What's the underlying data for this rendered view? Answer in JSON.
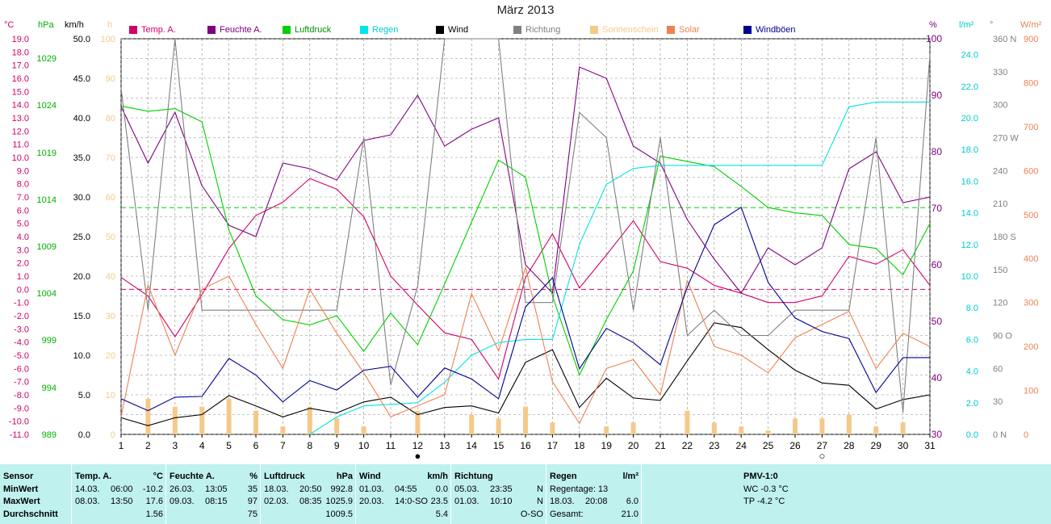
{
  "title": "März 2013",
  "units": {
    "temp": "°C",
    "hpa": "hPa",
    "kmh": "km/h",
    "h": "h",
    "pct": "%",
    "rain": "l/m²",
    "deg": "°",
    "solar": "W/m²"
  },
  "legend": [
    {
      "label": "Temp. A.",
      "color": "#d4006a"
    },
    {
      "label": "Feuchte A.",
      "color": "#800080"
    },
    {
      "label": "Luftdruck",
      "color": "#00d000"
    },
    {
      "label": "Regen",
      "color": "#00e6e6"
    },
    {
      "label": "Wind",
      "color": "#000000"
    },
    {
      "label": "Richtung",
      "color": "#808080"
    },
    {
      "label": "Sonnenschein",
      "color": "#f5c98a"
    },
    {
      "label": "Solar",
      "color": "#f08050"
    },
    {
      "label": "Windböen",
      "color": "#000090"
    }
  ],
  "chart_data": {
    "type": "line",
    "title": "März 2013",
    "x": [
      1,
      2,
      3,
      4,
      5,
      6,
      7,
      8,
      9,
      10,
      11,
      12,
      13,
      14,
      15,
      16,
      17,
      18,
      19,
      20,
      21,
      22,
      23,
      24,
      25,
      26,
      27,
      28,
      29,
      30,
      31
    ],
    "axes": {
      "temp": {
        "unit": "°C",
        "ylim": [
          -11,
          19
        ],
        "ticks": [
          "19.0",
          "18.0",
          "17.0",
          "16.0",
          "15.0",
          "14.0",
          "13.0",
          "12.0",
          "11.0",
          "10.0",
          "9.0",
          "8.0",
          "7.0",
          "6.0",
          "5.0",
          "4.0",
          "3.0",
          "2.0",
          "1.0",
          "0.0",
          "-1.0",
          "-2.0",
          "-3.0",
          "-4.0",
          "-5.0",
          "-6.0",
          "-7.0",
          "-8.0",
          "-9.0",
          "-10.0",
          "-11.0"
        ]
      },
      "pressure": {
        "unit": "hPa",
        "ticks": [
          "1029",
          "1024",
          "1019",
          "1014",
          "1009",
          "1004",
          "999",
          "994",
          "989"
        ]
      },
      "wind": {
        "unit": "km/h",
        "ylim": [
          0,
          50
        ],
        "ticks": [
          "50.0",
          "45.0",
          "40.0",
          "35.0",
          "30.0",
          "25.0",
          "20.0",
          "15.0",
          "10.0",
          "5.0",
          "0.0"
        ]
      },
      "sunshine": {
        "unit": "h",
        "ylim": [
          0,
          100
        ],
        "ticks": [
          "100",
          "90",
          "80",
          "70",
          "60",
          "50",
          "40",
          "30",
          "20",
          "10",
          "0"
        ]
      },
      "humidity": {
        "unit": "%",
        "ylim": [
          30,
          100
        ],
        "ticks": [
          "100",
          "90",
          "80",
          "70",
          "60",
          "50",
          "40",
          "30"
        ]
      },
      "rain": {
        "unit": "l/m²",
        "ylim": [
          0,
          25
        ],
        "ticks": [
          "24.0",
          "22.0",
          "20.0",
          "18.0",
          "16.0",
          "14.0",
          "12.0",
          "10.0",
          "8.0",
          "6.0",
          "4.0",
          "2.0",
          "0.0"
        ]
      },
      "direction": {
        "unit": "°",
        "ylim": [
          0,
          360
        ],
        "ticks": [
          "360 N",
          "330",
          "300",
          "270 W",
          "240",
          "210",
          "180 S",
          "150",
          "120",
          "90 O",
          "60",
          "30",
          "0 N"
        ]
      },
      "solar": {
        "unit": "W/m²",
        "ylim": [
          0,
          900
        ],
        "ticks": [
          "900",
          "800",
          "700",
          "600",
          "500",
          "400",
          "300",
          "200",
          "100",
          "0"
        ]
      }
    },
    "series": [
      {
        "name": "Temp. A.",
        "axis": "temp",
        "color": "#d4006a",
        "values": [
          0.9,
          -0.5,
          -3.6,
          -0.4,
          3.1,
          5.6,
          6.6,
          8.4,
          7.6,
          5.5,
          1.0,
          -1.2,
          -3.3,
          -3.8,
          -6.8,
          0.9,
          4.2,
          0.1,
          2.6,
          5.2,
          2.1,
          1.6,
          0.3,
          -0.3,
          -1.0,
          -1.0,
          -0.5,
          2.5,
          1.9,
          3.0,
          0.3
        ]
      },
      {
        "name": "Feuchte A.",
        "axis": "humidity",
        "color": "#800080",
        "values": [
          88,
          78,
          87,
          74,
          67,
          65,
          78,
          77,
          75,
          82,
          83,
          90,
          81,
          84,
          86,
          60,
          55,
          95,
          93,
          81,
          78,
          68,
          61,
          55,
          63,
          60,
          63,
          77,
          80,
          71,
          72
        ]
      },
      {
        "name": "Luftdruck",
        "axis": "temp",
        "color": "#00d000",
        "values": [
          13.9,
          13.5,
          13.7,
          12.7,
          4.5,
          -0.5,
          -2.3,
          -2.7,
          -2.0,
          -4.7,
          -1.8,
          -4.2,
          0.4,
          5.1,
          9.8,
          8.5,
          -0.5,
          -6.5,
          -2.3,
          1.4,
          10.1,
          9.7,
          9.3,
          7.8,
          6.2,
          5.8,
          5.6,
          3.4,
          3.1,
          1.1,
          5.0
        ]
      },
      {
        "name": "Regen",
        "axis": "rain",
        "color": "#00e6e6",
        "values": [
          null,
          null,
          null,
          null,
          null,
          null,
          null,
          0.0,
          1.1,
          1.8,
          1.9,
          2.0,
          3.3,
          5.0,
          5.8,
          6.0,
          6.0,
          12.0,
          15.8,
          16.8,
          17.0,
          17.0,
          17.0,
          17.0,
          17.0,
          17.0,
          17.0,
          20.7,
          21.0,
          21.0,
          21.0
        ]
      },
      {
        "name": "Wind",
        "axis": "wind",
        "color": "#000000",
        "values": [
          2.1,
          1.1,
          2.1,
          2.5,
          4.9,
          3.6,
          2.2,
          3.3,
          2.7,
          4.1,
          4.7,
          2.5,
          3.4,
          3.6,
          2.7,
          9.1,
          10.7,
          3.4,
          7.1,
          4.6,
          4.3,
          9.3,
          14.1,
          13.5,
          10.7,
          8.1,
          6.5,
          6.2,
          3.2,
          4.4,
          5.0
        ]
      },
      {
        "name": "Richtung",
        "axis": "direction",
        "color": "#808080",
        "values": [
          315,
          113,
          360,
          113,
          113,
          113,
          113,
          113,
          113,
          270,
          45,
          135,
          360,
          360,
          360,
          120,
          120,
          293,
          270,
          113,
          270,
          90,
          113,
          90,
          90,
          113,
          113,
          113,
          270,
          20,
          345
        ]
      },
      {
        "name": "Sonnenschein",
        "axis": "sunshine",
        "color": "#f5c98a",
        "values": [
          0,
          9,
          7,
          7,
          9,
          6,
          2,
          7,
          4,
          2,
          0,
          6,
          0,
          5,
          4,
          7,
          3,
          0,
          2,
          3,
          0,
          6,
          3,
          2,
          1,
          4,
          4,
          5,
          2,
          3,
          0
        ]
      },
      {
        "name": "Solar",
        "axis": "solar",
        "color": "#f08050",
        "values": [
          40,
          340,
          180,
          330,
          360,
          250,
          150,
          330,
          230,
          140,
          40,
          65,
          90,
          320,
          190,
          380,
          120,
          25,
          150,
          170,
          90,
          350,
          200,
          180,
          140,
          220,
          250,
          280,
          150,
          230,
          200
        ]
      },
      {
        "name": "Windböen",
        "axis": "wind",
        "color": "#000090",
        "values": [
          4.5,
          3.0,
          4.7,
          4.8,
          9.6,
          7.5,
          4.1,
          6.8,
          5.6,
          8.1,
          8.6,
          4.7,
          8.4,
          7.0,
          4.5,
          16.1,
          19.8,
          8.3,
          13.4,
          11.6,
          8.8,
          18.6,
          26.5,
          28.7,
          19.2,
          14.7,
          13.0,
          12.1,
          5.3,
          9.7,
          9.7
        ]
      }
    ],
    "reference_lines": [
      {
        "axis": "temp",
        "value": 0.0,
        "color": "#d4006a"
      },
      {
        "axis": "temp",
        "value": 6.2,
        "color": "#00d000"
      }
    ],
    "moon_markers": [
      {
        "x": 12,
        "symbol": "●"
      },
      {
        "x": 27,
        "symbol": "○"
      }
    ],
    "grid": true
  },
  "table": {
    "sensor": {
      "header": "Sensor",
      "rows": [
        "MinWert",
        "MaxWert",
        "Durchschnitt"
      ]
    },
    "temp": {
      "header": "Temp. A.",
      "unit": "°C",
      "rows": [
        [
          "14.03.",
          "06:00",
          "-10.2"
        ],
        [
          "08.03.",
          "13:50",
          "17.6"
        ],
        [
          "",
          "",
          "1.56"
        ]
      ]
    },
    "feuchte": {
      "header": "Feuchte A.",
      "unit": "%",
      "rows": [
        [
          "26.03.",
          "13:05",
          "35"
        ],
        [
          "09.03.",
          "08:15",
          "97"
        ],
        [
          "",
          "",
          "75"
        ]
      ]
    },
    "luftdruck": {
      "header": "Luftdruck",
      "unit": "hPa",
      "rows": [
        [
          "18.03.",
          "20:50",
          "992.8"
        ],
        [
          "02.03.",
          "08:35",
          "1025.9"
        ],
        [
          "",
          "",
          "1009.5"
        ]
      ]
    },
    "wind": {
      "header": "Wind",
      "unit": "km/h",
      "rows": [
        [
          "01.03.",
          "04:55",
          "0.0"
        ],
        [
          "20.03.",
          "14:0-SO",
          "23.5"
        ],
        [
          "",
          "",
          "5.4"
        ]
      ]
    },
    "richtung": {
      "header": "Richtung",
      "rows": [
        [
          "05.03.",
          "23:35",
          "N"
        ],
        [
          "01.03.",
          "10:10",
          "N"
        ],
        [
          "",
          "",
          "O-SO"
        ]
      ]
    },
    "regen": {
      "header": "Regen",
      "unit": "l/m²",
      "rows": [
        [
          "Regentage: 13",
          ""
        ],
        [
          "18.03.",
          "20:08",
          "6.0"
        ],
        [
          "Gesamt:",
          "21.0"
        ]
      ]
    },
    "pmv": {
      "header": "PMV-1:0",
      "rows": [
        "WC -0.3 °C",
        "TP -4.2 °C"
      ]
    }
  }
}
